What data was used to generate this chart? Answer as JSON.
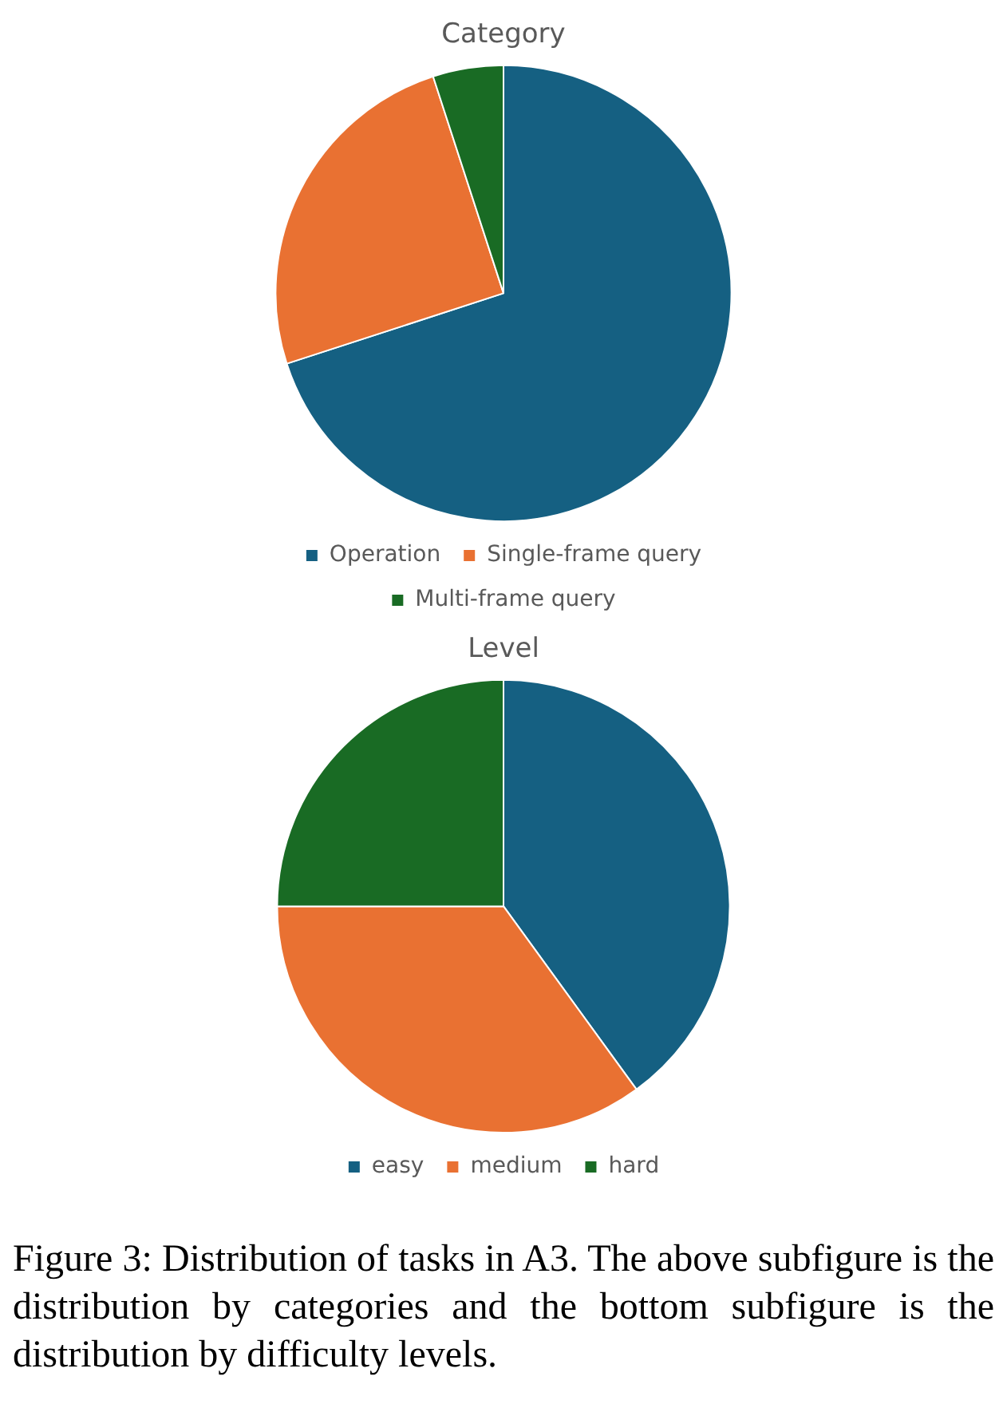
{
  "chart_data": [
    {
      "type": "pie",
      "title": "Category",
      "categories": [
        "Operation",
        "Single-frame query",
        "Multi-frame query"
      ],
      "values": [
        70,
        25,
        5
      ],
      "colors": [
        "#156082",
        "#e97132",
        "#196b24"
      ],
      "legend": "bottom"
    },
    {
      "type": "pie",
      "title": "Level",
      "categories": [
        "easy",
        "medium",
        "hard"
      ],
      "values": [
        40,
        35,
        25
      ],
      "colors": [
        "#156082",
        "#e97132",
        "#196b24"
      ],
      "legend": "bottom",
      "annotations": [
        "Figure 3: Distribution of tasks in A3. The above subfigure is the distribution by categories and the bottom subfigure is the distribution by difficulty levels."
      ]
    }
  ]
}
